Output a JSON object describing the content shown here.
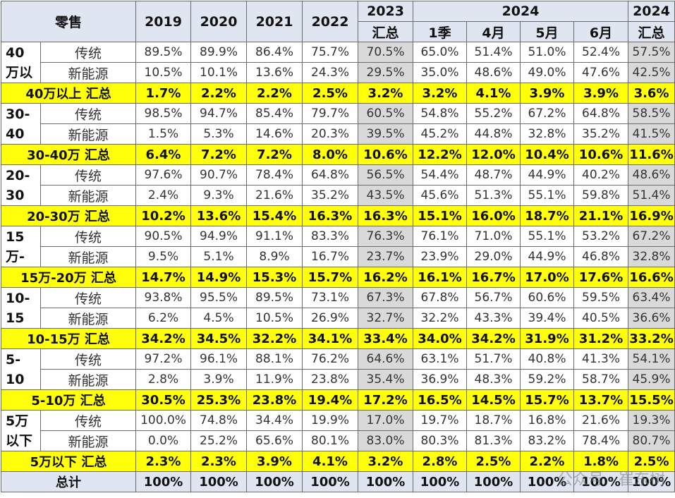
{
  "chart_data": {
    "type": "table",
    "corner_label": "零售",
    "year_headers": [
      "2019",
      "2020",
      "2021",
      "2022"
    ],
    "col_2023": [
      "2023",
      "汇总"
    ],
    "group_2024": "2024",
    "sub_2024": [
      "1季",
      "4月",
      "5月",
      "6月"
    ],
    "col_2024_total": [
      "2024",
      "汇总"
    ],
    "segments": [
      {
        "label": "40\n万以",
        "rows": [
          {
            "kind": "传统",
            "values": [
              "89.5%",
              "89.9%",
              "86.4%",
              "75.7%",
              "70.5%",
              "65.0%",
              "51.4%",
              "51.0%",
              "52.4%",
              "57.5%"
            ]
          },
          {
            "kind": "新能源",
            "values": [
              "10.5%",
              "10.1%",
              "13.6%",
              "24.3%",
              "29.5%",
              "35.0%",
              "48.6%",
              "49.0%",
              "47.6%",
              "42.5%"
            ]
          }
        ],
        "summary": {
          "label": "40万以上 汇总",
          "values": [
            "1.7%",
            "2.2%",
            "2.2%",
            "2.5%",
            "3.2%",
            "3.2%",
            "4.1%",
            "3.9%",
            "3.9%",
            "3.6%"
          ]
        }
      },
      {
        "label": "30-\n40",
        "rows": [
          {
            "kind": "传统",
            "values": [
              "98.5%",
              "94.7%",
              "85.4%",
              "79.7%",
              "60.5%",
              "54.8%",
              "55.2%",
              "67.2%",
              "64.8%",
              "58.5%"
            ]
          },
          {
            "kind": "新能源",
            "values": [
              "1.5%",
              "5.3%",
              "14.6%",
              "20.3%",
              "39.5%",
              "45.2%",
              "44.8%",
              "32.8%",
              "35.2%",
              "41.5%"
            ]
          }
        ],
        "summary": {
          "label": "30-40万 汇总",
          "values": [
            "6.4%",
            "7.2%",
            "7.2%",
            "8.0%",
            "10.6%",
            "12.2%",
            "12.0%",
            "10.4%",
            "10.6%",
            "11.6%"
          ]
        }
      },
      {
        "label": "20-\n30",
        "rows": [
          {
            "kind": "传统",
            "values": [
              "97.6%",
              "90.7%",
              "78.4%",
              "64.8%",
              "56.5%",
              "54.4%",
              "48.7%",
              "44.9%",
              "40.2%",
              "48.6%"
            ]
          },
          {
            "kind": "新能源",
            "values": [
              "2.4%",
              "9.3%",
              "21.6%",
              "35.2%",
              "43.5%",
              "45.6%",
              "51.3%",
              "55.1%",
              "59.8%",
              "51.4%"
            ]
          }
        ],
        "summary": {
          "label": "20-30万 汇总",
          "values": [
            "10.2%",
            "13.6%",
            "15.4%",
            "16.3%",
            "16.3%",
            "15.1%",
            "16.0%",
            "18.7%",
            "21.1%",
            "16.9%"
          ]
        }
      },
      {
        "label": "15\n万-",
        "rows": [
          {
            "kind": "传统",
            "values": [
              "90.5%",
              "94.9%",
              "91.1%",
              "83.3%",
              "76.3%",
              "76.1%",
              "71.0%",
              "55.1%",
              "53.2%",
              "67.2%"
            ]
          },
          {
            "kind": "新能源",
            "values": [
              "9.5%",
              "5.1%",
              "8.9%",
              "16.7%",
              "23.7%",
              "23.9%",
              "29.0%",
              "44.9%",
              "46.8%",
              "32.8%"
            ]
          }
        ],
        "summary": {
          "label": "15万-20万 汇总",
          "values": [
            "14.7%",
            "14.9%",
            "15.3%",
            "15.7%",
            "16.2%",
            "16.1%",
            "16.7%",
            "17.0%",
            "17.6%",
            "16.6%"
          ]
        }
      },
      {
        "label": "10-\n15",
        "rows": [
          {
            "kind": "传统",
            "values": [
              "93.8%",
              "95.5%",
              "89.5%",
              "73.1%",
              "67.3%",
              "67.8%",
              "56.7%",
              "60.6%",
              "59.5%",
              "63.4%"
            ]
          },
          {
            "kind": "新能源",
            "values": [
              "6.2%",
              "4.5%",
              "10.5%",
              "26.9%",
              "32.7%",
              "32.2%",
              "43.3%",
              "39.4%",
              "40.5%",
              "36.6%"
            ]
          }
        ],
        "summary": {
          "label": "10-15万 汇总",
          "values": [
            "34.2%",
            "34.5%",
            "32.2%",
            "34.1%",
            "33.4%",
            "34.0%",
            "34.2%",
            "31.9%",
            "31.2%",
            "33.2%"
          ]
        }
      },
      {
        "label": "5-\n10",
        "rows": [
          {
            "kind": "传统",
            "values": [
              "97.2%",
              "96.1%",
              "88.1%",
              "76.2%",
              "64.6%",
              "63.1%",
              "51.7%",
              "40.8%",
              "41.3%",
              "54.1%"
            ]
          },
          {
            "kind": "新能源",
            "values": [
              "2.8%",
              "3.9%",
              "11.9%",
              "23.8%",
              "35.4%",
              "36.9%",
              "48.3%",
              "59.2%",
              "58.7%",
              "45.9%"
            ]
          }
        ],
        "summary": {
          "label": "5-10万 汇总",
          "values": [
            "30.5%",
            "25.3%",
            "23.8%",
            "19.4%",
            "17.2%",
            "16.5%",
            "14.5%",
            "15.7%",
            "13.7%",
            "15.5%"
          ]
        }
      },
      {
        "label": "5万\n以下",
        "rows": [
          {
            "kind": "传统",
            "values": [
              "100.0%",
              "74.8%",
              "34.4%",
              "19.9%",
              "17.0%",
              "19.7%",
              "18.7%",
              "16.8%",
              "21.6%",
              "19.3%"
            ]
          },
          {
            "kind": "新能源",
            "values": [
              "0.0%",
              "25.2%",
              "65.6%",
              "80.1%",
              "83.0%",
              "80.3%",
              "81.3%",
              "83.2%",
              "78.4%",
              "80.7%"
            ]
          }
        ],
        "summary": {
          "label": "5万以下 汇总",
          "values": [
            "2.3%",
            "2.3%",
            "3.9%",
            "4.1%",
            "3.2%",
            "2.8%",
            "2.5%",
            "2.2%",
            "1.8%",
            "2.5%"
          ]
        }
      }
    ],
    "total": {
      "label": "总计",
      "values": [
        "100%",
        "100%",
        "100%",
        "100%",
        "100%",
        "100%",
        "100%",
        "100%",
        "100%",
        "100%"
      ]
    },
    "highlight_colors": {
      "summary_row": "#ffff0a",
      "total_col": "#d9d9d9",
      "header": "#dfe6f1"
    }
  },
  "watermark": "公众号 · 崔东树"
}
